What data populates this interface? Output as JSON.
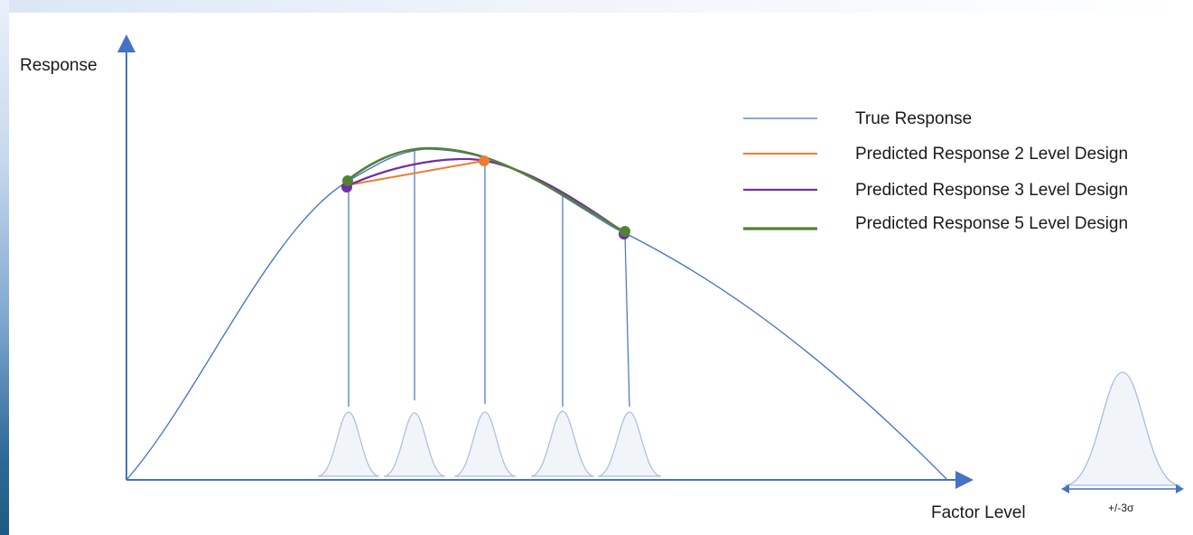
{
  "axes": {
    "y_label": "Response",
    "x_label": "Factor Level"
  },
  "legend": {
    "items": [
      {
        "label": "True Response",
        "color": "#4472c4",
        "style": "thin"
      },
      {
        "label": "Predicted Response 2 Level Design",
        "color": "#ed7d31",
        "style": "medium"
      },
      {
        "label": "Predicted Response 3 Level Design",
        "color": "#7030a0",
        "style": "medium"
      },
      {
        "label": "Predicted Response 5 Level Design",
        "color": "#548235",
        "style": "thick"
      }
    ]
  },
  "distribution_annotation": "+/-3σ",
  "colors": {
    "axis": "#4472c4",
    "true_response": "#4472c4",
    "two_level": "#ed7d31",
    "three_level": "#7030a0",
    "five_level": "#548235",
    "distribution_fill": "#f1f4f9",
    "distribution_stroke": "#a9bedd"
  }
}
